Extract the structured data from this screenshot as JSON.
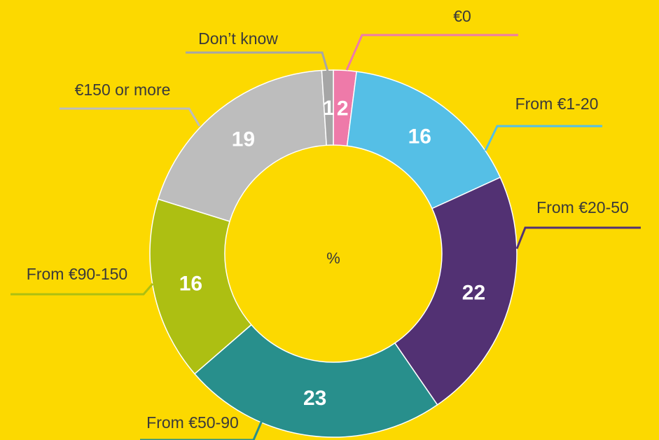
{
  "chart_data": {
    "type": "donut",
    "center_label": "%",
    "categories": [
      "€0",
      "From €1-20",
      "From €20-50",
      "From €50-90",
      "From €90-150",
      "€150 or more",
      "Don’t know"
    ],
    "values": [
      2,
      16,
      22,
      23,
      16,
      19,
      1
    ],
    "colors": [
      "#ee7aa9",
      "#55bfe6",
      "#523173",
      "#288f8c",
      "#adbf12",
      "#bdbdbd",
      "#a6a6a6"
    ]
  }
}
